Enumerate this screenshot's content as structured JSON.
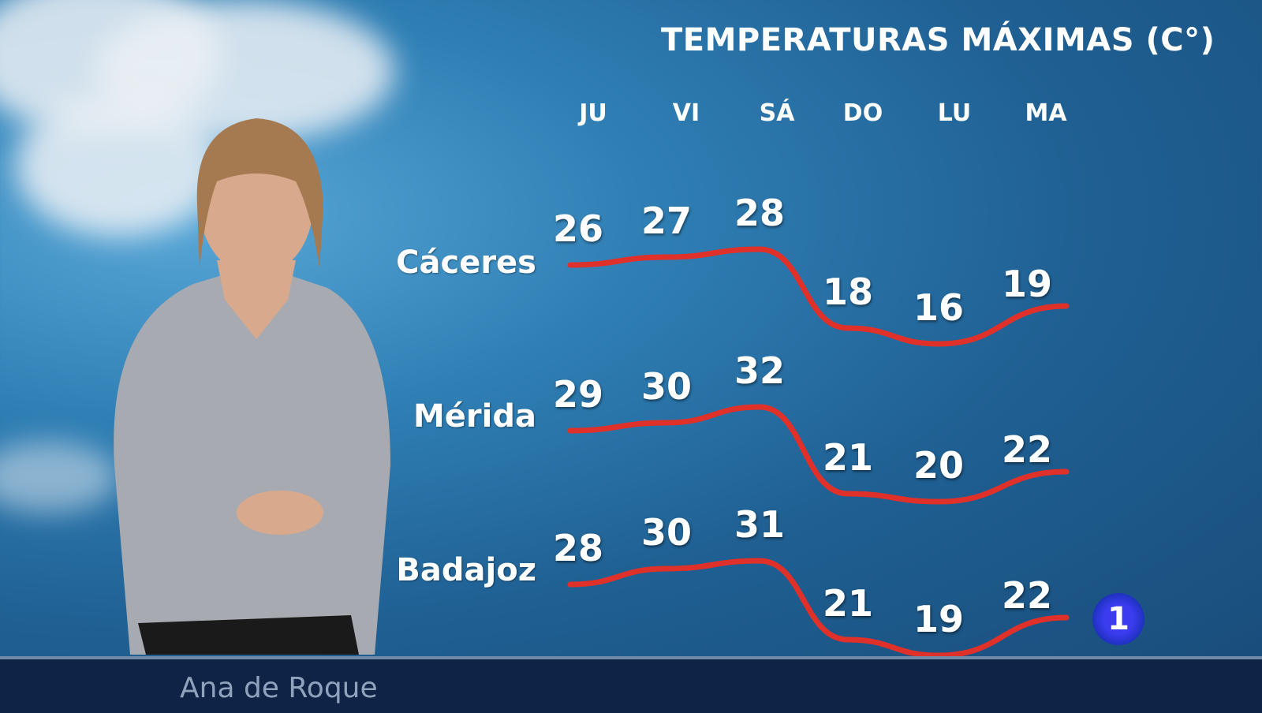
{
  "chart_data": {
    "type": "line",
    "title": "TEMPERATURAS MÁXIMAS (C°)",
    "categories": [
      "JU",
      "VI",
      "SÁ",
      "DO",
      "LU",
      "MA"
    ],
    "series": [
      {
        "name": "Cáceres",
        "values": [
          26,
          27,
          28,
          18,
          16,
          19
        ]
      },
      {
        "name": "Mérida",
        "values": [
          29,
          30,
          32,
          21,
          20,
          22
        ]
      },
      {
        "name": "Badajoz",
        "values": [
          28,
          30,
          31,
          21,
          19,
          22
        ]
      }
    ],
    "line_color": "#e0302a"
  },
  "presenter_name": "Ana de Roque",
  "channel_logo": "1"
}
